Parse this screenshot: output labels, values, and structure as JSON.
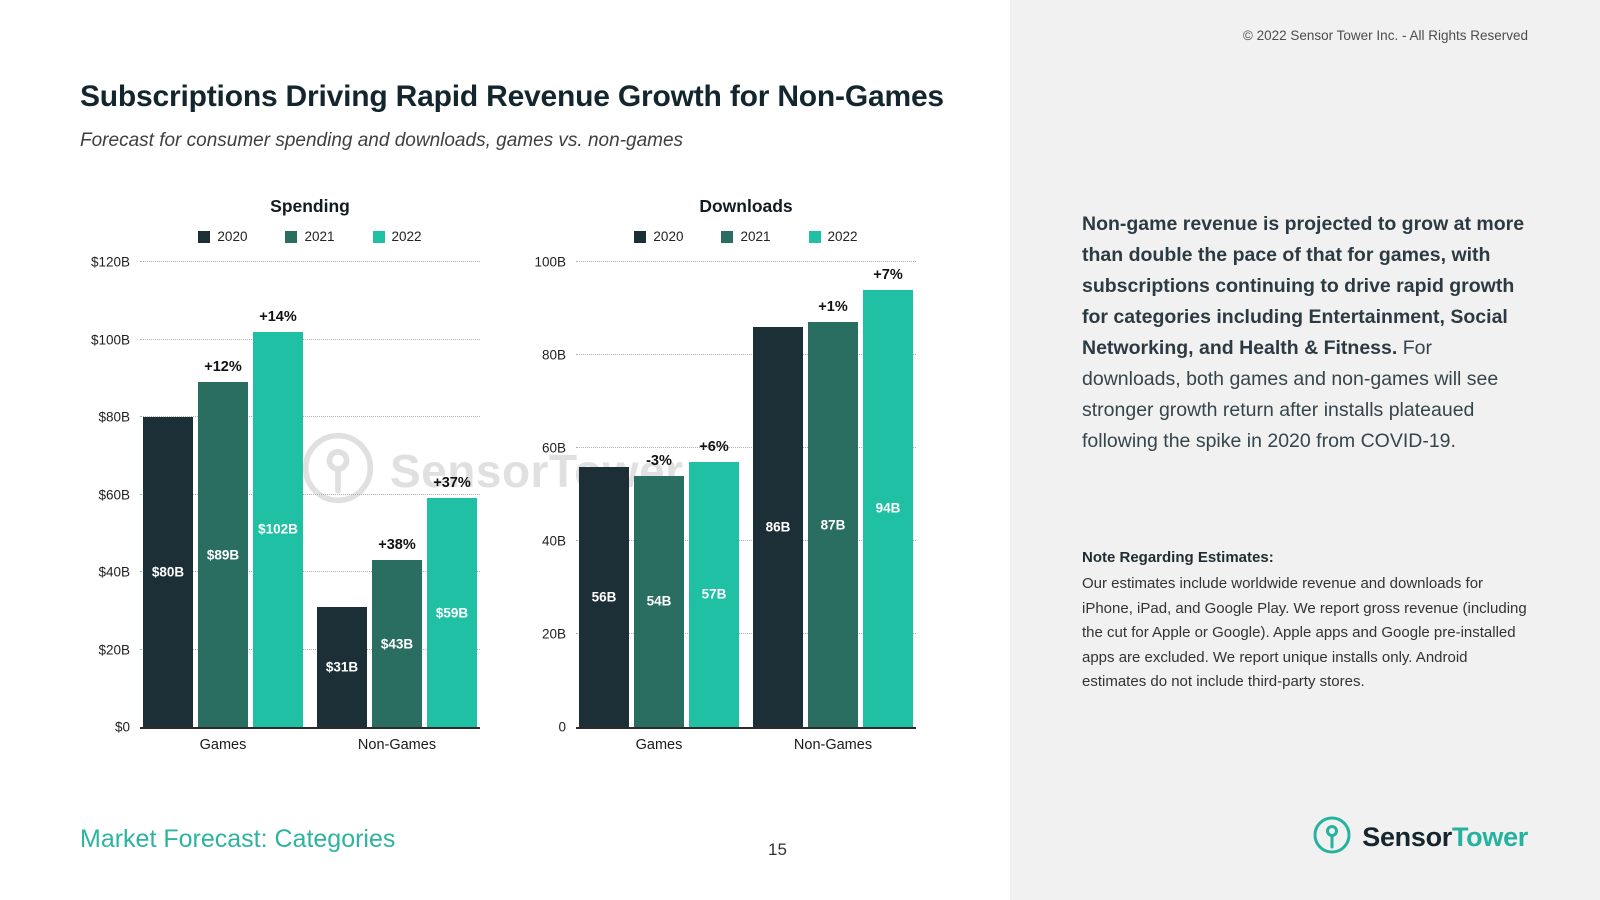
{
  "page": {
    "title": "Subscriptions Driving Rapid Revenue Growth for Non-Games",
    "subtitle": "Forecast for consumer spending and downloads, games vs. non-games",
    "footer_left": "Market Forecast: Categories",
    "page_number": "15",
    "copyright": "© 2022 Sensor Tower Inc. - All Rights Reserved"
  },
  "colors": {
    "series": [
      "#1c2e36",
      "#2a6e62",
      "#20c0a4"
    ],
    "accent": "#25b3a0",
    "aside_background": "#f1f1f1"
  },
  "watermark": {
    "text": "SensorTower"
  },
  "chart_data": [
    {
      "type": "bar",
      "title": "Spending",
      "categories": [
        "Games",
        "Non-Games"
      ],
      "series": [
        {
          "name": "2020",
          "values": [
            80,
            31
          ],
          "labels": [
            "$80B",
            "$31B"
          ],
          "deltas": [
            null,
            null
          ]
        },
        {
          "name": "2021",
          "values": [
            89,
            43
          ],
          "labels": [
            "$89B",
            "$43B"
          ],
          "deltas": [
            "+12%",
            "+38%"
          ]
        },
        {
          "name": "2022",
          "values": [
            102,
            59
          ],
          "labels": [
            "$102B",
            "$59B"
          ],
          "deltas": [
            "+14%",
            "+37%"
          ]
        }
      ],
      "ylim": [
        0,
        120
      ],
      "yticks": [
        "$0",
        "$20B",
        "$40B",
        "$60B",
        "$80B",
        "$100B",
        "$120B"
      ],
      "grid": "dotted-horizontal",
      "legend_position": "top"
    },
    {
      "type": "bar",
      "title": "Downloads",
      "categories": [
        "Games",
        "Non-Games"
      ],
      "series": [
        {
          "name": "2020",
          "values": [
            56,
            86
          ],
          "labels": [
            "56B",
            "86B"
          ],
          "deltas": [
            null,
            null
          ]
        },
        {
          "name": "2021",
          "values": [
            54,
            87
          ],
          "labels": [
            "54B",
            "87B"
          ],
          "deltas": [
            "-3%",
            "+1%"
          ]
        },
        {
          "name": "2022",
          "values": [
            57,
            94
          ],
          "labels": [
            "57B",
            "94B"
          ],
          "deltas": [
            "+6%",
            "+7%"
          ]
        }
      ],
      "ylim": [
        0,
        100
      ],
      "yticks": [
        "0",
        "20B",
        "40B",
        "60B",
        "80B",
        "100B"
      ],
      "grid": "dotted-horizontal",
      "legend_position": "top"
    }
  ],
  "sidebar": {
    "body_bold": "Non-game revenue is projected to grow at more than double the pace of that for games, with subscriptions continuing to drive rapid growth for categories including Entertainment, Social Networking, and Health & Fitness.",
    "body_regular": " For downloads, both games and non-games will see stronger growth return after installs plateaued following the spike in 2020 from COVID-19.",
    "note_title": "Note Regarding Estimates:",
    "note_body": "Our estimates include worldwide revenue and downloads for iPhone, iPad, and Google Play. We report gross revenue (including the cut for Apple or Google). Apple apps and Google pre-installed apps are excluded. We report unique installs only. Android estimates do not include third-party stores.",
    "logo_text_dark": "Sensor",
    "logo_text_teal": "Tower"
  }
}
